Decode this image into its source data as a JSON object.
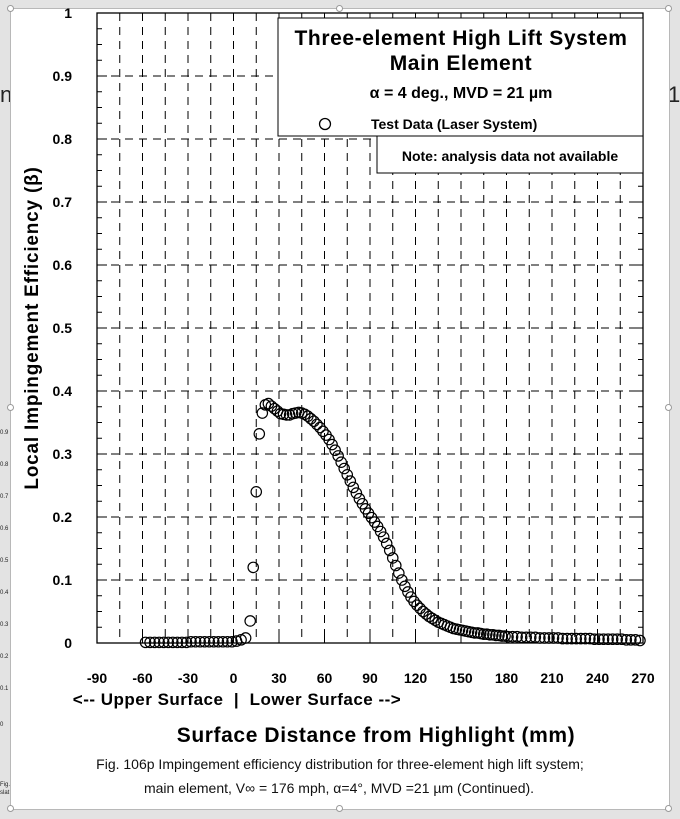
{
  "chart_data": {
    "type": "scatter",
    "title": "Three-element High Lift System",
    "subtitle": "Main Element",
    "conditions": "α = 4 deg., MVD = 21 µm",
    "xlabel": "Surface Distance from Highlight (mm)",
    "ylabel": "Local Impingement Efficiency (β)",
    "surface_label": "<-- Upper Surface  |  Lower Surface -->",
    "note": "Note: analysis data not available",
    "legend_position": "top-right",
    "grid": true,
    "xlim": [
      -90,
      270
    ],
    "ylim": [
      0,
      1
    ],
    "xticks": [
      "-90",
      "-60",
      "-30",
      "0",
      "30",
      "60",
      "90",
      "120",
      "150",
      "180",
      "210",
      "240",
      "270"
    ],
    "yticks": [
      "0",
      "0.1",
      "0.2",
      "0.3",
      "0.4",
      "0.5",
      "0.6",
      "0.7",
      "0.8",
      "0.9",
      "1"
    ],
    "series": [
      {
        "name": "Test Data (Laser System)",
        "marker": "open-circle",
        "x": [
          -58,
          -55,
          -52,
          -49,
          -46,
          -43,
          -40,
          -37,
          -34,
          -31,
          -28,
          -25,
          -22,
          -19,
          -16,
          -13,
          -10,
          -7,
          -4,
          -1,
          2,
          5,
          8,
          11,
          13,
          15,
          17,
          19,
          21,
          23,
          25,
          27,
          29,
          31,
          33,
          35,
          37,
          39,
          41,
          43,
          45,
          47,
          49,
          51,
          53,
          55,
          57,
          59,
          61,
          63,
          65,
          67,
          69,
          71,
          73,
          75,
          77,
          79,
          81,
          83,
          85,
          87,
          89,
          91,
          93,
          95,
          97,
          99,
          101,
          103,
          105,
          107,
          109,
          111,
          113,
          115,
          117,
          119,
          121,
          123,
          125,
          127,
          129,
          131,
          133,
          135,
          137,
          139,
          141,
          143,
          145,
          147,
          149,
          151,
          153,
          155,
          157,
          159,
          161,
          163,
          165,
          167,
          169,
          171,
          173,
          175,
          177,
          179,
          181,
          184,
          187,
          190,
          193,
          196,
          199,
          202,
          205,
          208,
          211,
          214,
          217,
          220,
          223,
          226,
          229,
          232,
          235,
          238,
          241,
          244,
          247,
          250,
          253,
          256,
          259,
          262,
          265,
          268
        ],
        "y": [
          0.001,
          0.001,
          0.001,
          0.001,
          0.001,
          0.001,
          0.001,
          0.001,
          0.001,
          0.001,
          0.002,
          0.002,
          0.002,
          0.002,
          0.002,
          0.002,
          0.002,
          0.002,
          0.002,
          0.002,
          0.003,
          0.005,
          0.008,
          0.035,
          0.12,
          0.24,
          0.332,
          0.365,
          0.378,
          0.38,
          0.376,
          0.372,
          0.368,
          0.364,
          0.363,
          0.362,
          0.362,
          0.364,
          0.365,
          0.366,
          0.365,
          0.363,
          0.36,
          0.356,
          0.352,
          0.347,
          0.342,
          0.336,
          0.33,
          0.323,
          0.315,
          0.306,
          0.297,
          0.287,
          0.277,
          0.267,
          0.257,
          0.247,
          0.238,
          0.229,
          0.221,
          0.213,
          0.206,
          0.199,
          0.192,
          0.185,
          0.177,
          0.168,
          0.158,
          0.147,
          0.135,
          0.123,
          0.111,
          0.1,
          0.09,
          0.081,
          0.073,
          0.066,
          0.06,
          0.055,
          0.05,
          0.046,
          0.042,
          0.039,
          0.036,
          0.033,
          0.031,
          0.029,
          0.027,
          0.025,
          0.023,
          0.022,
          0.021,
          0.02,
          0.019,
          0.018,
          0.017,
          0.016,
          0.016,
          0.015,
          0.014,
          0.014,
          0.013,
          0.013,
          0.012,
          0.012,
          0.011,
          0.011,
          0.01,
          0.01,
          0.01,
          0.009,
          0.009,
          0.009,
          0.009,
          0.008,
          0.008,
          0.008,
          0.008,
          0.008,
          0.007,
          0.007,
          0.007,
          0.007,
          0.007,
          0.007,
          0.007,
          0.006,
          0.006,
          0.006,
          0.006,
          0.006,
          0.006,
          0.006,
          0.005,
          0.005,
          0.005,
          0.004
        ]
      }
    ]
  },
  "caption": {
    "line1": "Fig. 106p  Impingement efficiency distribution for three-element high lift system;",
    "line2": "main element,  V∞ = 176 mph, α=4°,  MVD =21 µm (Continued)."
  },
  "background": {
    "left_fragment": "n",
    "right_fragment": "1",
    "left_ticks": [
      "0.9",
      "0.8",
      "0.7",
      "0.6",
      "0.5",
      "0.4",
      "0.3",
      "0.2",
      "0.1",
      "0"
    ],
    "bottom_fragment_1": "Fig.",
    "bottom_fragment_2": "slat"
  }
}
